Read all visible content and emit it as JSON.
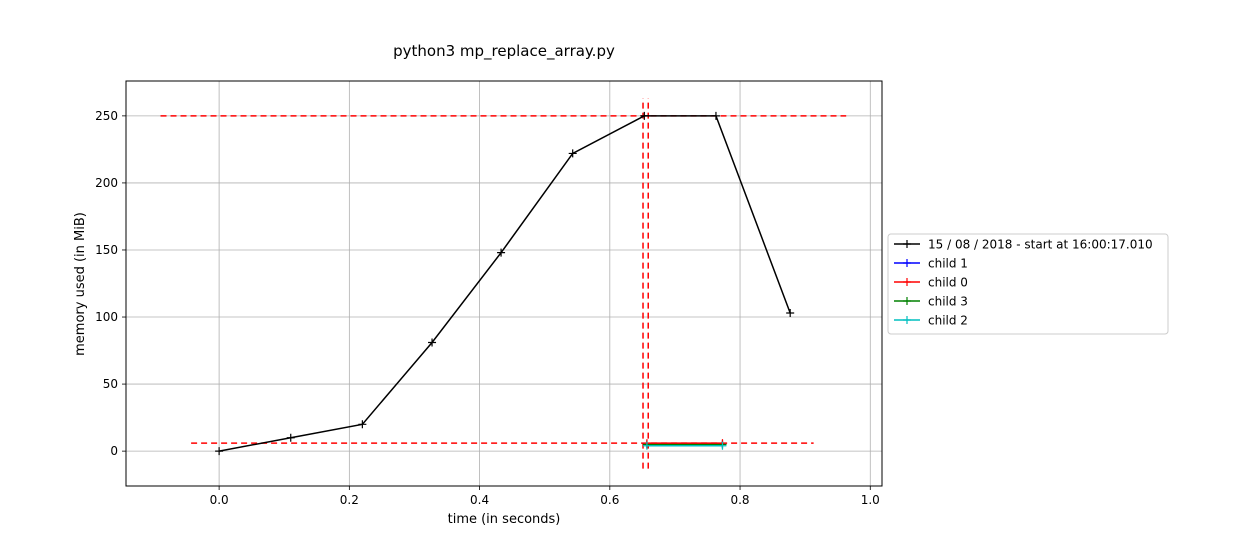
{
  "chart_data": {
    "type": "line",
    "title": "python3 mp_replace_array.py",
    "xlabel": "time (in seconds)",
    "ylabel": "memory used (in MiB)",
    "xlim": [
      -0.143,
      1.018
    ],
    "ylim": [
      -26,
      276
    ],
    "xticks": [
      0.0,
      0.2,
      0.4,
      0.6,
      0.8,
      1.0
    ],
    "xtick_labels": [
      "0.0",
      "0.2",
      "0.4",
      "0.6",
      "0.8",
      "1.0"
    ],
    "yticks": [
      0,
      50,
      100,
      150,
      200,
      250
    ],
    "ytick_labels": [
      "0",
      "50",
      "100",
      "150",
      "200",
      "250"
    ],
    "grid": true,
    "legend_position": "outside-right",
    "series": [
      {
        "name": "15 / 08 / 2018 - start at 16:00:17.010",
        "color": "#000000",
        "x": [
          0.0,
          0.11,
          0.22,
          0.327,
          0.433,
          0.543,
          0.653,
          0.763,
          0.877
        ],
        "y": [
          0,
          10,
          20,
          81,
          148,
          222,
          250,
          250,
          103
        ]
      },
      {
        "name": "child 1",
        "color": "#0000ff",
        "x": [
          0.657,
          0.773
        ],
        "y": [
          5,
          5
        ]
      },
      {
        "name": "child 0",
        "color": "#ff0000",
        "x": [
          0.657,
          0.773
        ],
        "y": [
          6,
          6
        ]
      },
      {
        "name": "child 3",
        "color": "#008000",
        "x": [
          0.657,
          0.773
        ],
        "y": [
          5,
          5
        ]
      },
      {
        "name": "child 2",
        "color": "#00bfbf",
        "x": [
          0.657,
          0.773
        ],
        "y": [
          4,
          4
        ]
      }
    ],
    "reference_lines": [
      {
        "orientation": "horizontal",
        "value": 250,
        "from": -0.09,
        "to": 0.963,
        "color": "#ff0000",
        "style": "dashed"
      },
      {
        "orientation": "horizontal",
        "value": 6,
        "from": -0.043,
        "to": 0.913,
        "color": "#ff0000",
        "style": "dashed"
      },
      {
        "orientation": "vertical",
        "value": 0.651,
        "from": -13,
        "to": 263,
        "color": "#ff0000",
        "style": "dashed"
      },
      {
        "orientation": "vertical",
        "value": 0.659,
        "from": -13,
        "to": 263,
        "color": "#ff0000",
        "style": "dashed"
      }
    ]
  }
}
